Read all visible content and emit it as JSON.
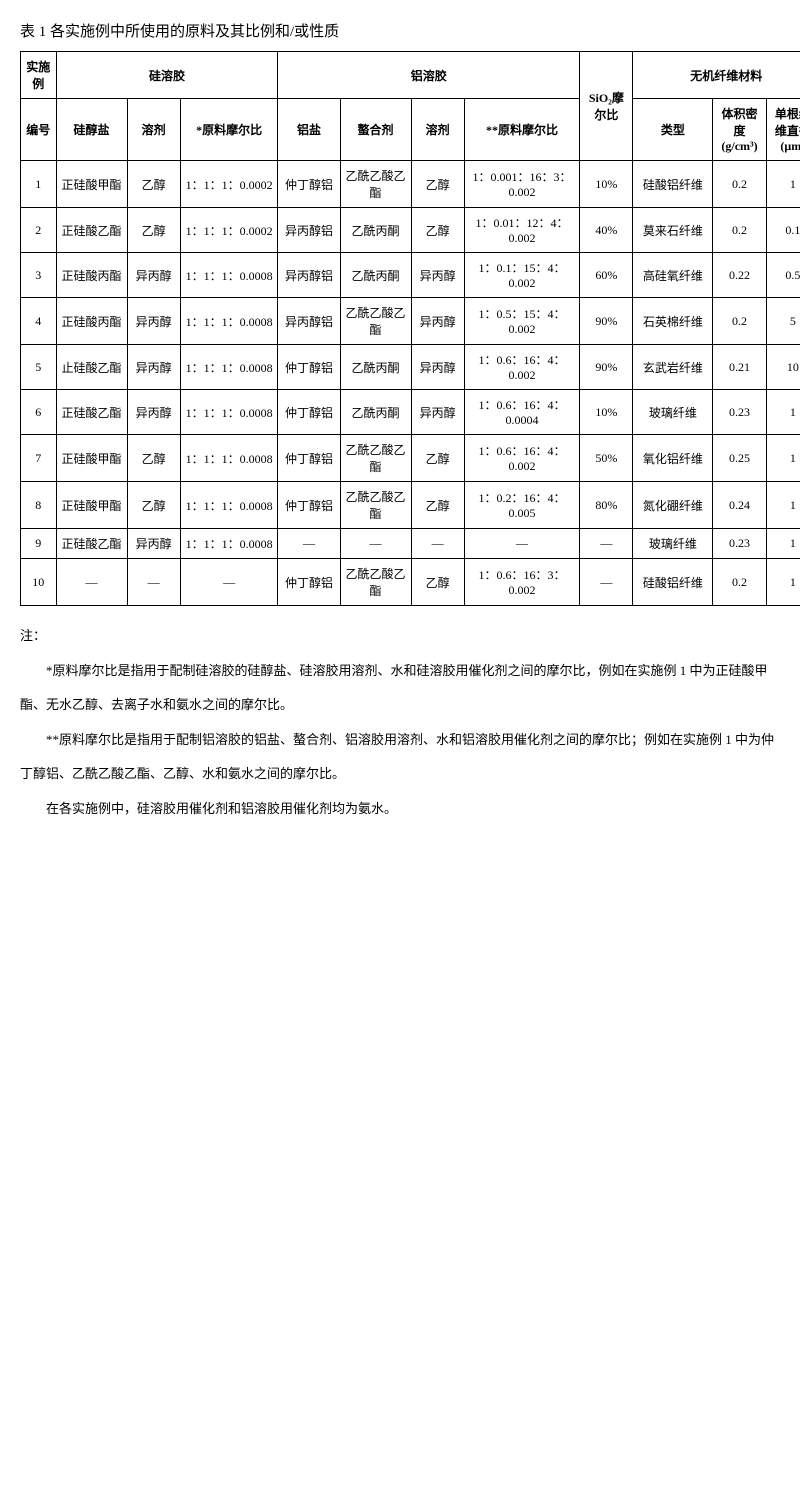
{
  "title": "表 1 各实施例中所使用的原料及其比例和/或性质",
  "table": {
    "header_top": {
      "example": "实施例",
      "si_sol": "硅溶胶",
      "al_sol": "铝溶胶",
      "sio2_ratio": "SiO₂摩尔比",
      "fiber": "无机纤维材料"
    },
    "header_sub": {
      "num": "编号",
      "si_alkoxide": "硅醇盐",
      "si_solvent": "溶剂",
      "si_ratio": "*原料摩尔比",
      "al_salt": "铝盐",
      "chelator": "螯合剂",
      "al_solvent": "溶剂",
      "al_ratio": "**原料摩尔比",
      "fiber_type": "类型",
      "density": "体积密度 (g/cm³)",
      "diameter": "单根纤维直径 (μm)"
    },
    "rows": [
      {
        "num": "1",
        "si_alk": "正硅酸甲酯",
        "si_sol": "乙醇",
        "si_r": "1：1：1：0.0002",
        "al_salt": "仲丁醇铝",
        "chel": "乙酰乙酸乙酯",
        "al_sol": "乙醇",
        "al_r": "1：0.001：16：3：0.002",
        "sio2": "10%",
        "ftype": "硅酸铝纤维",
        "dens": "0.2",
        "diam": "1"
      },
      {
        "num": "2",
        "si_alk": "正硅酸乙酯",
        "si_sol": "乙醇",
        "si_r": "1：1：1：0.0002",
        "al_salt": "异丙醇铝",
        "chel": "乙酰丙酮",
        "al_sol": "乙醇",
        "al_r": "1：0.01：12：4：0.002",
        "sio2": "40%",
        "ftype": "莫来石纤维",
        "dens": "0.2",
        "diam": "0.1"
      },
      {
        "num": "3",
        "si_alk": "正硅酸丙酯",
        "si_sol": "异丙醇",
        "si_r": "1：1：1：0.0008",
        "al_salt": "异丙醇铝",
        "chel": "乙酰丙酮",
        "al_sol": "异丙醇",
        "al_r": "1：0.1：15：4：0.002",
        "sio2": "60%",
        "ftype": "高硅氧纤维",
        "dens": "0.22",
        "diam": "0.5"
      },
      {
        "num": "4",
        "si_alk": "正硅酸丙酯",
        "si_sol": "异丙醇",
        "si_r": "1：1：1：0.0008",
        "al_salt": "异丙醇铝",
        "chel": "乙酰乙酸乙酯",
        "al_sol": "异丙醇",
        "al_r": "1：0.5：15：4：0.002",
        "sio2": "90%",
        "ftype": "石英棉纤维",
        "dens": "0.2",
        "diam": "5"
      },
      {
        "num": "5",
        "si_alk": "止硅酸乙酯",
        "si_sol": "异丙醇",
        "si_r": "1：1：1：0.0008",
        "al_salt": "仲丁醇铝",
        "chel": "乙酰丙酮",
        "al_sol": "异丙醇",
        "al_r": "1：0.6：16：4：0.002",
        "sio2": "90%",
        "ftype": "玄武岩纤维",
        "dens": "0.21",
        "diam": "10"
      },
      {
        "num": "6",
        "si_alk": "正硅酸乙酯",
        "si_sol": "异丙醇",
        "si_r": "1：1：1：0.0008",
        "al_salt": "仲丁醇铝",
        "chel": "乙酰丙酮",
        "al_sol": "异丙醇",
        "al_r": "1：0.6：16：4：0.0004",
        "sio2": "10%",
        "ftype": "玻璃纤维",
        "dens": "0.23",
        "diam": "1"
      },
      {
        "num": "7",
        "si_alk": "正硅酸甲酯",
        "si_sol": "乙醇",
        "si_r": "1：1：1：0.0008",
        "al_salt": "仲丁醇铝",
        "chel": "乙酰乙酸乙酯",
        "al_sol": "乙醇",
        "al_r": "1：0.6：16：4：0.002",
        "sio2": "50%",
        "ftype": "氧化铝纤维",
        "dens": "0.25",
        "diam": "1"
      },
      {
        "num": "8",
        "si_alk": "正硅酸甲酯",
        "si_sol": "乙醇",
        "si_r": "1：1：1：0.0008",
        "al_salt": "仲丁醇铝",
        "chel": "乙酰乙酸乙酯",
        "al_sol": "乙醇",
        "al_r": "1：0.2：16：4：0.005",
        "sio2": "80%",
        "ftype": "氮化硼纤维",
        "dens": "0.24",
        "diam": "1"
      },
      {
        "num": "9",
        "si_alk": "正硅酸乙酯",
        "si_sol": "异丙醇",
        "si_r": "1：1：1：0.0008",
        "al_salt": "—",
        "chel": "—",
        "al_sol": "—",
        "al_r": "—",
        "sio2": "—",
        "ftype": "玻璃纤维",
        "dens": "0.23",
        "diam": "1"
      },
      {
        "num": "10",
        "si_alk": "—",
        "si_sol": "—",
        "si_r": "—",
        "al_salt": "仲丁醇铝",
        "chel": "乙酰乙酸乙酯",
        "al_sol": "乙醇",
        "al_r": "1：0.6：16：3：0.002",
        "sio2": "—",
        "ftype": "硅酸铝纤维",
        "dens": "0.2",
        "diam": "1"
      }
    ]
  },
  "notes": {
    "heading": "注：",
    "n1a": "*原料摩尔比是指用于配制硅溶胶的硅醇盐、硅溶胶用溶剂、水和硅溶胶用催化剂之间的摩尔比，例如在实施例 1 中为正硅酸甲",
    "n1b": "酯、无水乙醇、去离子水和氨水之间的摩尔比。",
    "n2a": "**原料摩尔比是指用于配制铝溶胶的铝盐、螯合剂、铝溶胶用溶剂、水和铝溶胶用催化剂之间的摩尔比；例如在实施例 1 中为仲",
    "n2b": "丁醇铝、乙酰乙酸乙酯、乙醇、水和氨水之间的摩尔比。",
    "n3": "在各实施例中，硅溶胶用催化剂和铝溶胶用催化剂均为氨水。"
  }
}
